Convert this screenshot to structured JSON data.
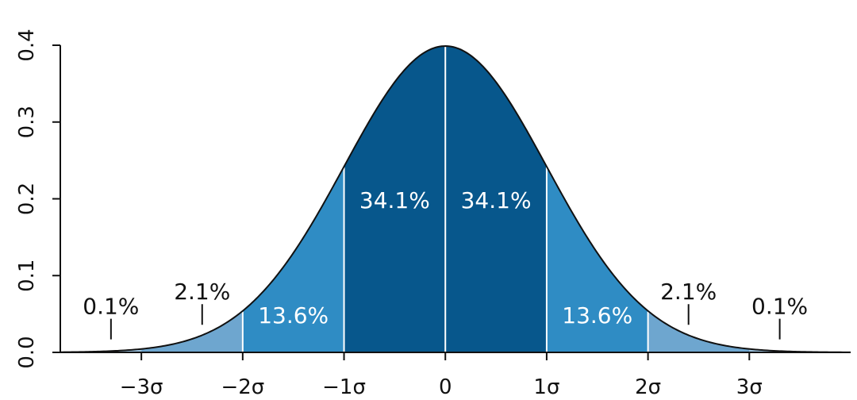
{
  "chart_data": {
    "type": "area",
    "title": "",
    "xlabel": "",
    "ylabel": "",
    "distribution": "normal",
    "mean": 0,
    "sd": 1,
    "xlim": [
      -3.8,
      4.0
    ],
    "ylim": [
      0,
      0.4
    ],
    "yticks": [
      {
        "value": 0.0,
        "label": "0.0"
      },
      {
        "value": 0.1,
        "label": "0.1"
      },
      {
        "value": 0.2,
        "label": "0.2"
      },
      {
        "value": 0.3,
        "label": "0.3"
      },
      {
        "value": 0.4,
        "label": "0.4"
      }
    ],
    "xticks": [
      {
        "value": -3,
        "label": "−3σ"
      },
      {
        "value": -2,
        "label": "−2σ"
      },
      {
        "value": -1,
        "label": "−1σ"
      },
      {
        "value": 0,
        "label": "0"
      },
      {
        "value": 1,
        "label": "1σ"
      },
      {
        "value": 2,
        "label": "2σ"
      },
      {
        "value": 3,
        "label": "3σ"
      }
    ],
    "regions": [
      {
        "from": -3,
        "to": -2,
        "percent": 2.1,
        "color": "#6ea6cf"
      },
      {
        "from": -2,
        "to": -1,
        "percent": 13.6,
        "color": "#2f8cc4"
      },
      {
        "from": -1,
        "to": 0,
        "percent": 34.1,
        "color": "#07578c"
      },
      {
        "from": 0,
        "to": 1,
        "percent": 34.1,
        "color": "#07578c"
      },
      {
        "from": 1,
        "to": 2,
        "percent": 13.6,
        "color": "#2f8cc4"
      },
      {
        "from": 2,
        "to": 3,
        "percent": 2.1,
        "color": "#6ea6cf"
      }
    ],
    "tail_color": "#9cc3e0",
    "labels": [
      {
        "text": "0.1%",
        "x": -3.3,
        "y": 0.05,
        "color": "#111111",
        "pointer": true
      },
      {
        "text": "2.1%",
        "x": -2.4,
        "y": 0.069,
        "color": "#111111",
        "pointer": true
      },
      {
        "text": "13.6%",
        "x": -1.5,
        "y": 0.038,
        "color": "#ffffff",
        "pointer": false
      },
      {
        "text": "34.1%",
        "x": -0.5,
        "y": 0.188,
        "color": "#ffffff",
        "pointer": false
      },
      {
        "text": "34.1%",
        "x": 0.5,
        "y": 0.188,
        "color": "#ffffff",
        "pointer": false
      },
      {
        "text": "13.6%",
        "x": 1.5,
        "y": 0.038,
        "color": "#ffffff",
        "pointer": false
      },
      {
        "text": "2.1%",
        "x": 2.4,
        "y": 0.069,
        "color": "#111111",
        "pointer": true
      },
      {
        "text": "0.1%",
        "x": 3.3,
        "y": 0.05,
        "color": "#111111",
        "pointer": true
      }
    ],
    "grid": false,
    "legend": "none"
  }
}
